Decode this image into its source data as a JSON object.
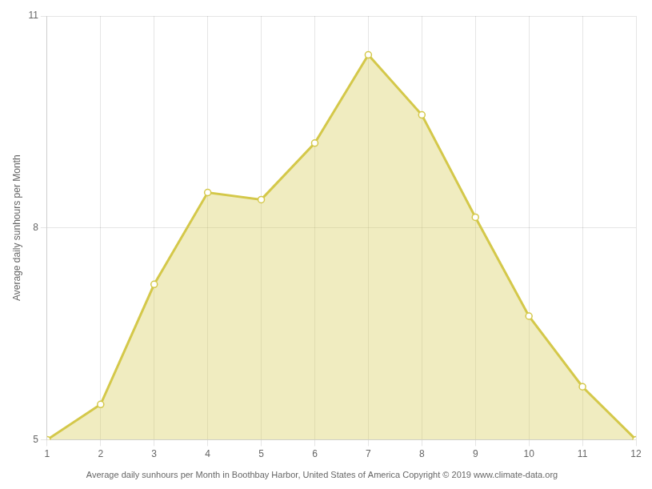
{
  "chart_data": {
    "type": "area",
    "ylabel": "Average daily sunhours per Month",
    "caption": "Average daily sunhours per Month in Boothbay Harbor, United States of America Copyright © 2019 www.climate-data.org",
    "x": [
      1,
      2,
      3,
      4,
      5,
      6,
      7,
      8,
      9,
      10,
      11,
      12
    ],
    "values": [
      5.0,
      5.5,
      7.2,
      8.5,
      8.4,
      9.2,
      10.45,
      9.6,
      8.15,
      6.75,
      5.75,
      5.0
    ],
    "color": "#D4C84A",
    "marker": "circle",
    "xlim": [
      1,
      12
    ],
    "xticks": [
      1,
      2,
      3,
      4,
      5,
      6,
      7,
      8,
      9,
      10,
      11,
      12
    ],
    "ylim": [
      5,
      11
    ],
    "yticks": [
      5,
      8,
      11
    ],
    "grid": true
  }
}
